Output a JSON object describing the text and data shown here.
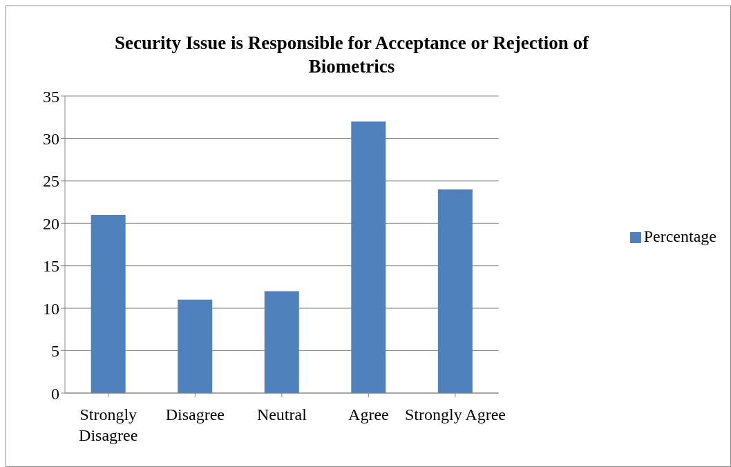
{
  "chart_data": {
    "type": "bar",
    "title": "Security Issue is Responsible for Acceptance or Rejection of Biometrics",
    "categories": [
      "Strongly Disagree",
      "Disagree",
      "Neutral",
      "Agree",
      "Strongly Agree"
    ],
    "series": [
      {
        "name": "Percentage",
        "color": "#4f81bd",
        "values": [
          21,
          11,
          12,
          32,
          24
        ]
      }
    ],
    "ylim": [
      0,
      35
    ],
    "yticks": [
      0,
      5,
      10,
      15,
      20,
      25,
      30,
      35
    ],
    "grid": "y",
    "legend": "right"
  }
}
